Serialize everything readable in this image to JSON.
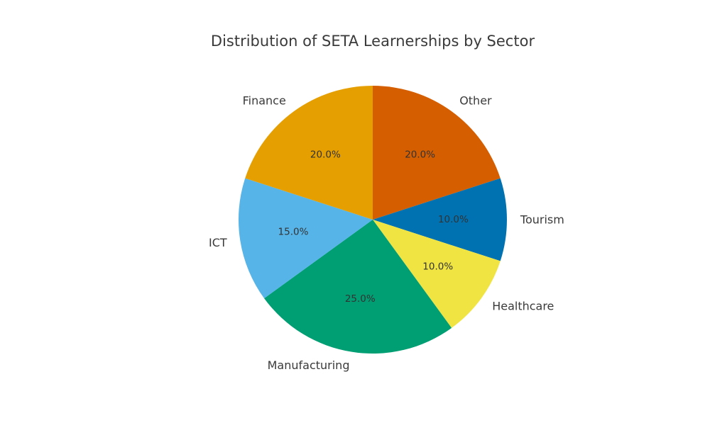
{
  "chart_data": {
    "type": "pie",
    "title": "Distribution of SETA Learnerships by Sector",
    "start_angle_deg": 90,
    "direction": "clockwise",
    "slices": [
      {
        "label": "Other",
        "value": 20.0,
        "pct_label": "20.0%",
        "color": "#D55E00"
      },
      {
        "label": "Tourism",
        "value": 10.0,
        "pct_label": "10.0%",
        "color": "#0072B2"
      },
      {
        "label": "Healthcare",
        "value": 10.0,
        "pct_label": "10.0%",
        "color": "#F0E442"
      },
      {
        "label": "Manufacturing",
        "value": 25.0,
        "pct_label": "25.0%",
        "color": "#009E73"
      },
      {
        "label": "ICT",
        "value": 15.0,
        "pct_label": "15.0%",
        "color": "#56B4E9"
      },
      {
        "label": "Finance",
        "value": 20.0,
        "pct_label": "20.0%",
        "color": "#E69F00"
      }
    ]
  }
}
